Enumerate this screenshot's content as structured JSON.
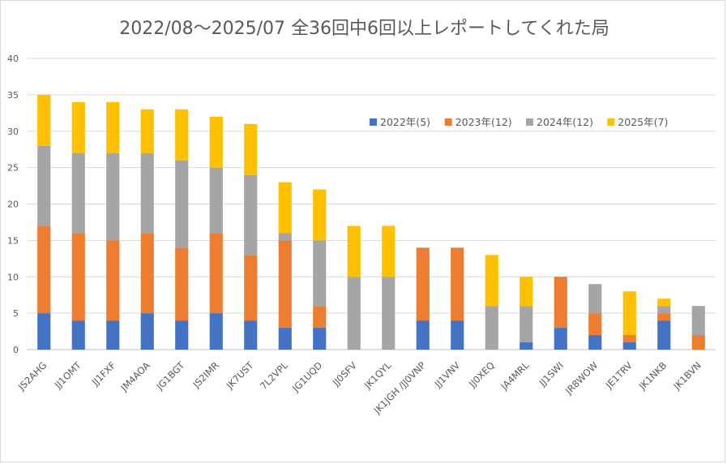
{
  "chart_data": {
    "type": "bar",
    "stacked": true,
    "title": "2022/08～2025/07 全36回中6回以上レポートしてくれた局",
    "xlabel": "",
    "ylabel": "",
    "ylim": [
      0,
      40
    ],
    "yticks": [
      0,
      5,
      10,
      15,
      20,
      25,
      30,
      35,
      40
    ],
    "grid": true,
    "legend_position": "top-right",
    "categories": [
      "JS2AHG",
      "JJ1OMT",
      "JJ1FXF",
      "JM4AOA",
      "JG1BGT",
      "JS2IMR",
      "JK7UST",
      "7L2VPL",
      "JG1UQD",
      "JJ0SFV",
      "JK1QYL",
      "JK1JGH /JJ0VNP",
      "JJ1VNV",
      "JJ0XEQ",
      "JA4MRL",
      "JJ1SWI",
      "JR8WOW",
      "JE1TRV",
      "JK1NKB",
      "JK1BVN"
    ],
    "series": [
      {
        "name": "2022年(5)",
        "color": "#4472c4",
        "values": [
          5,
          4,
          4,
          5,
          4,
          5,
          4,
          3,
          3,
          0,
          0,
          4,
          4,
          0,
          1,
          3,
          2,
          1,
          4,
          0
        ]
      },
      {
        "name": "2023年(12)",
        "color": "#ed7d31",
        "values": [
          12,
          12,
          11,
          11,
          10,
          11,
          9,
          12,
          3,
          0,
          0,
          10,
          10,
          0,
          0,
          7,
          3,
          1,
          1,
          2
        ]
      },
      {
        "name": "2024年(12)",
        "color": "#a5a5a5",
        "values": [
          11,
          11,
          12,
          11,
          12,
          9,
          11,
          1,
          9,
          10,
          10,
          0,
          0,
          6,
          5,
          0,
          4,
          0,
          1,
          4
        ]
      },
      {
        "name": "2025年(7)",
        "color": "#ffc000",
        "values": [
          7,
          7,
          7,
          6,
          7,
          7,
          7,
          7,
          7,
          7,
          7,
          0,
          0,
          7,
          4,
          0,
          0,
          6,
          1,
          0
        ]
      }
    ]
  }
}
